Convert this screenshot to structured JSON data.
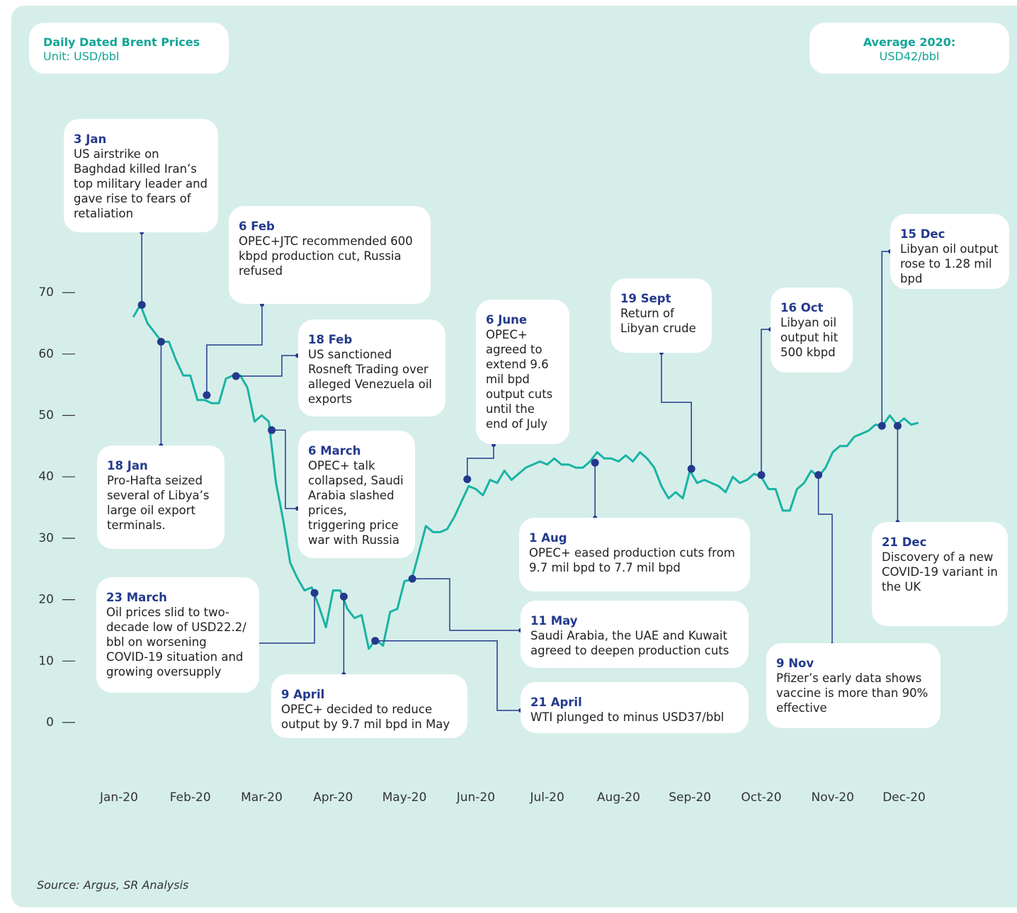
{
  "chart_data": {
    "type": "line",
    "title": "Daily Dated Brent Prices",
    "subtitle": "Unit: USD/bbl",
    "summary": {
      "label": "Average 2020:",
      "value": "USD42/bbl"
    },
    "source": "Source: Argus, SR Analysis",
    "xlim": [
      -0.6,
      11.6
    ],
    "xticks": [
      {
        "value": 0,
        "label": "Jan-20"
      },
      {
        "value": 1,
        "label": "Feb-20"
      },
      {
        "value": 2,
        "label": "Mar-20"
      },
      {
        "value": 3,
        "label": "Apr-20"
      },
      {
        "value": 4,
        "label": "May-20"
      },
      {
        "value": 5,
        "label": "Jun-20"
      },
      {
        "value": 6,
        "label": "Jul-20"
      },
      {
        "value": 7,
        "label": "Aug-20"
      },
      {
        "value": 8,
        "label": "Sep-20"
      },
      {
        "value": 9,
        "label": "Oct-20"
      },
      {
        "value": 10,
        "label": "Nov-20"
      },
      {
        "value": 11,
        "label": "Dec-20"
      }
    ],
    "ylim": [
      0,
      80
    ],
    "yticks": [
      0,
      10,
      20,
      30,
      40,
      50,
      60,
      70
    ],
    "series": [
      {
        "color": "#19b3a4",
        "x": [
          0.2,
          0.3,
          0.4,
          0.5,
          0.6,
          0.7,
          0.8,
          0.9,
          1.0,
          1.1,
          1.2,
          1.3,
          1.4,
          1.5,
          1.6,
          1.7,
          1.8,
          1.9,
          2.0,
          2.1,
          2.2,
          2.3,
          2.4,
          2.5,
          2.6,
          2.7,
          2.8,
          2.9,
          3.0,
          3.1,
          3.2,
          3.3,
          3.4,
          3.5,
          3.6,
          3.7,
          3.8,
          3.9,
          4.0,
          4.1,
          4.2,
          4.3,
          4.4,
          4.5,
          4.6,
          4.7,
          4.8,
          4.9,
          5.0,
          5.1,
          5.2,
          5.3,
          5.4,
          5.5,
          5.6,
          5.7,
          5.8,
          5.9,
          6.0,
          6.1,
          6.2,
          6.3,
          6.4,
          6.5,
          6.6,
          6.7,
          6.8,
          6.9,
          7.0,
          7.1,
          7.2,
          7.3,
          7.4,
          7.5,
          7.6,
          7.7,
          7.8,
          7.9,
          8.0,
          8.1,
          8.2,
          8.3,
          8.4,
          8.5,
          8.6,
          8.7,
          8.8,
          8.9,
          9.0,
          9.1,
          9.2,
          9.3,
          9.4,
          9.5,
          9.6,
          9.7,
          9.8,
          9.9,
          10.0,
          10.1,
          10.2,
          10.3,
          10.4,
          10.5,
          10.6,
          10.7,
          10.8,
          10.9,
          11.0,
          11.1,
          11.2
        ],
        "values": [
          66,
          68,
          65,
          63.5,
          62,
          62,
          59,
          56.5,
          56.5,
          52.5,
          52.5,
          52,
          52,
          56,
          56.5,
          56.5,
          54.5,
          49,
          50,
          49,
          39,
          33,
          26,
          23.5,
          21.5,
          22,
          19,
          15.5,
          21.5,
          21.5,
          18.5,
          17,
          17.5,
          12,
          13.5,
          12.5,
          18,
          18.5,
          23,
          23.3,
          27.5,
          32,
          31,
          31,
          31.5,
          33.5,
          36,
          38.5,
          38,
          37,
          39.5,
          39,
          41,
          39.5,
          40.5,
          41.5,
          42,
          42.5,
          42,
          43,
          42,
          42,
          41.5,
          41.5,
          42.5,
          44,
          43,
          43,
          42.5,
          43.5,
          42.5,
          44,
          43,
          41.5,
          38.5,
          36.5,
          37.5,
          36.5,
          41,
          39,
          39.5,
          39,
          38.5,
          37.5,
          40,
          39,
          39.5,
          40.5,
          40,
          38,
          38,
          34.5,
          34.5,
          38,
          39,
          41,
          40,
          41.5,
          44,
          45,
          45,
          46.5,
          47,
          47.5,
          48.5,
          48.3,
          50,
          48.5,
          49.5,
          48.5,
          48.8
        ]
      }
    ],
    "annotations": [
      {
        "date": "3 Jan",
        "text": "US airstrike on Baghdad killed Iran’s top military leader and gave rise to fears of retaliation",
        "x": 0.32,
        "y": 68
      },
      {
        "date": "18 Jan",
        "text": "Pro-Hafta seized several of Libya’s large oil export terminals.",
        "x": 0.59,
        "y": 62
      },
      {
        "date": "6 Feb",
        "text": "OPEC+JTC recommended 600 kbpd production cut, Russia refused",
        "x": 1.23,
        "y": 53.3
      },
      {
        "date": "18 Feb",
        "text": "US sanctioned Rosneft Trading over alleged Venezuela oil exports",
        "x": 1.64,
        "y": 56.4
      },
      {
        "date": "6 March",
        "text": "OPEC+ talk collapsed, Saudi Arabia slashed prices, triggering price war with Russia",
        "x": 2.14,
        "y": 47.6
      },
      {
        "date": "23 March",
        "text": "Oil prices slid to two-decade low of USD22.2/ bbl on worsening COVID-19 situation and growing oversupply",
        "x": 2.74,
        "y": 21.1
      },
      {
        "date": "9 April",
        "text": "OPEC+ decided to reduce output by 9.7 mil bpd in May",
        "x": 3.15,
        "y": 20.5
      },
      {
        "date": "21 April",
        "text": "WTI plunged to minus USD37/bbl",
        "x": 3.59,
        "y": 13.3
      },
      {
        "date": "11 May",
        "text": "Saudi Arabia, the UAE and Kuwait agreed to deepen production cuts",
        "x": 4.11,
        "y": 23.4
      },
      {
        "date": "6 June",
        "text": "OPEC+ agreed to extend 9.6 mil bpd output cuts until the end of July",
        "x": 4.88,
        "y": 39.6
      },
      {
        "date": "1 Aug",
        "text": "OPEC+ eased production cuts from 9.7 mil bpd to 7.7 mil bpd",
        "x": 6.67,
        "y": 42.3
      },
      {
        "date": "19 Sept",
        "text": "Return of Libyan crude",
        "x": 8.02,
        "y": 41.3
      },
      {
        "date": "16 Oct",
        "text": "Libyan oil output hit 500 kbpd",
        "x": 9.0,
        "y": 40.3
      },
      {
        "date": "9 Nov",
        "text": "Pfizer’s early data shows vaccine is more than 90% effective",
        "x": 9.8,
        "y": 40.3
      },
      {
        "date": "15 Dec",
        "text": "Libyan oil output rose to 1.28 mil bpd",
        "x": 10.69,
        "y": 48.3
      },
      {
        "date": "21 Dec",
        "text": "Discovery of a new COVID-19 variant in the UK",
        "x": 10.91,
        "y": 48.3
      }
    ]
  }
}
